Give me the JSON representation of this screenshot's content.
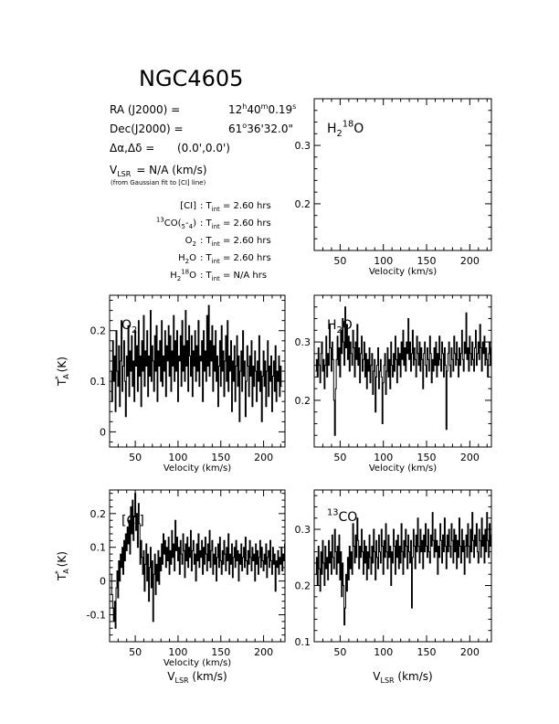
{
  "header": {
    "object": "NGC4605",
    "ra_label": "RA (J2000) =",
    "ra": {
      "h": "12",
      "m": "40",
      "s": "0.19"
    },
    "dec_label": "Dec(J2000) =",
    "dec": {
      "d": "61",
      "m": "36",
      "s": "32.0"
    },
    "offset_label": "Δα,Δδ =",
    "offset_value": "(0.0',0.0')",
    "vlsr_value": "= N/A  (km/s)",
    "fit_note": "(from Gaussian fit to [CI] line)",
    "tint_lines": [
      {
        "label": "[CI]",
        "value": "2.60"
      },
      {
        "label": "13CO(5-4)",
        "value": "2.60"
      },
      {
        "label": "O2",
        "value": "2.60"
      },
      {
        "label": "H2O",
        "value": "2.60"
      },
      {
        "label": "H2 18O",
        "value": "N/A"
      }
    ],
    "tint_unit": "hrs"
  },
  "chart_data": [
    {
      "id": "h218o",
      "type": "line",
      "label": "H2 18O",
      "xlabel": "Velocity (km/s)",
      "ylabel": "",
      "xlim": [
        20,
        225
      ],
      "ylim": [
        0.12,
        0.38
      ],
      "xticks": [
        50,
        100,
        150,
        200
      ],
      "yticks": [
        0.2,
        0.3
      ],
      "x": [],
      "y": []
    },
    {
      "id": "o2",
      "type": "line",
      "label": "O2",
      "xlabel": "Velocity (km/s)",
      "ylabel": "T*A (K)",
      "xlim": [
        20,
        225
      ],
      "ylim": [
        -0.03,
        0.27
      ],
      "xticks": [
        50,
        100,
        150,
        200
      ],
      "yticks": [
        0,
        0.1,
        0.2
      ],
      "x_start": 22,
      "x_step": 1,
      "y": [
        0.12,
        0.06,
        0.18,
        0.1,
        0.15,
        0.04,
        0.2,
        0.12,
        0.09,
        0.17,
        0.05,
        0.14,
        0.22,
        0.08,
        0.13,
        0.18,
        0.1,
        0.03,
        0.15,
        0.11,
        0.21,
        0.07,
        0.16,
        0.12,
        0.19,
        0.09,
        0.14,
        0.06,
        0.2,
        0.13,
        0.17,
        0.08,
        0.22,
        0.11,
        0.15,
        0.05,
        0.18,
        0.12,
        0.23,
        0.09,
        0.16,
        0.13,
        0.2,
        0.07,
        0.15,
        0.11,
        0.24,
        0.1,
        0.17,
        0.14,
        0.08,
        0.19,
        0.12,
        0.21,
        0.06,
        0.16,
        0.13,
        0.18,
        0.1,
        0.22,
        0.09,
        0.15,
        0.12,
        0.2,
        0.07,
        0.17,
        0.14,
        0.21,
        0.11,
        0.19,
        0.08,
        0.16,
        0.13,
        0.23,
        0.1,
        0.18,
        0.12,
        0.2,
        0.06,
        0.15,
        0.14,
        0.19,
        0.09,
        0.22,
        0.12,
        0.17,
        0.1,
        0.24,
        0.13,
        0.18,
        0.08,
        0.21,
        0.15,
        0.11,
        0.19,
        0.07,
        0.16,
        0.13,
        0.2,
        0.1,
        0.17,
        0.12,
        0.22,
        0.09,
        0.15,
        0.14,
        0.18,
        0.06,
        0.2,
        0.12,
        0.16,
        0.1,
        0.23,
        0.13,
        0.25,
        0.11,
        0.18,
        0.14,
        0.21,
        0.08,
        0.17,
        0.12,
        0.2,
        0.1,
        0.15,
        0.05,
        0.13,
        0.18,
        0.09,
        0.21,
        0.12,
        0.16,
        0.07,
        0.14,
        0.19,
        0.1,
        0.22,
        0.08,
        0.15,
        0.12,
        0.18,
        0.04,
        0.14,
        0.1,
        0.17,
        0.06,
        0.13,
        0.19,
        0.09,
        0.15,
        0.02,
        0.12,
        0.16,
        0.08,
        0.2,
        0.11,
        0.14,
        0.03,
        0.1,
        0.17,
        0.13,
        0.07,
        0.15,
        0.11,
        0.18,
        0.05,
        0.13,
        0.09,
        0.16,
        0.12,
        0.06,
        0.14,
        0.1,
        0.19,
        0.08,
        0.12,
        0.02,
        0.11,
        0.16,
        0.09,
        0.14,
        0.05,
        0.12,
        0.18,
        0.07,
        0.13,
        0.1,
        0.15,
        0.04,
        0.11,
        0.14,
        0.08,
        0.17,
        0.06,
        0.12,
        0.1,
        0.15,
        0.07,
        0.13,
        0.09
      ]
    },
    {
      "id": "h2o",
      "type": "line",
      "label": "H2O",
      "xlabel": "Velocity (km/s)",
      "ylabel": "",
      "xlim": [
        20,
        225
      ],
      "ylim": [
        0.12,
        0.38
      ],
      "xticks": [
        50,
        100,
        150,
        200
      ],
      "yticks": [
        0.2,
        0.3
      ],
      "x_start": 22,
      "x_step": 1,
      "y": [
        0.25,
        0.27,
        0.24,
        0.29,
        0.26,
        0.23,
        0.28,
        0.3,
        0.25,
        0.27,
        0.22,
        0.26,
        0.31,
        0.24,
        0.28,
        0.26,
        0.33,
        0.29,
        0.25,
        0.3,
        0.27,
        0.2,
        0.14,
        0.22,
        0.27,
        0.31,
        0.26,
        0.29,
        0.24,
        0.32,
        0.28,
        0.34,
        0.3,
        0.26,
        0.36,
        0.29,
        0.33,
        0.27,
        0.31,
        0.25,
        0.3,
        0.28,
        0.26,
        0.32,
        0.29,
        0.24,
        0.3,
        0.27,
        0.33,
        0.26,
        0.29,
        0.23,
        0.28,
        0.31,
        0.25,
        0.27,
        0.3,
        0.24,
        0.28,
        0.22,
        0.27,
        0.25,
        0.29,
        0.23,
        0.26,
        0.28,
        0.21,
        0.25,
        0.27,
        0.18,
        0.24,
        0.26,
        0.29,
        0.22,
        0.25,
        0.27,
        0.24,
        0.16,
        0.23,
        0.26,
        0.28,
        0.21,
        0.25,
        0.29,
        0.24,
        0.27,
        0.22,
        0.3,
        0.26,
        0.24,
        0.28,
        0.25,
        0.31,
        0.27,
        0.23,
        0.29,
        0.26,
        0.28,
        0.24,
        0.3,
        0.27,
        0.32,
        0.26,
        0.29,
        0.25,
        0.3,
        0.28,
        0.34,
        0.27,
        0.3,
        0.25,
        0.28,
        0.32,
        0.26,
        0.29,
        0.27,
        0.24,
        0.31,
        0.28,
        0.26,
        0.3,
        0.25,
        0.29,
        0.27,
        0.22,
        0.28,
        0.3,
        0.26,
        0.24,
        0.29,
        0.27,
        0.25,
        0.31,
        0.28,
        0.23,
        0.27,
        0.25,
        0.29,
        0.26,
        0.3,
        0.24,
        0.28,
        0.26,
        0.31,
        0.27,
        0.25,
        0.3,
        0.28,
        0.24,
        0.29,
        0.26,
        0.15,
        0.25,
        0.28,
        0.3,
        0.26,
        0.24,
        0.29,
        0.27,
        0.25,
        0.31,
        0.28,
        0.26,
        0.3,
        0.27,
        0.24,
        0.29,
        0.26,
        0.28,
        0.32,
        0.27,
        0.25,
        0.3,
        0.28,
        0.35,
        0.27,
        0.29,
        0.25,
        0.31,
        0.28,
        0.26,
        0.3,
        0.27,
        0.25,
        0.29,
        0.32,
        0.26,
        0.28,
        0.3,
        0.27,
        0.33,
        0.29,
        0.25,
        0.3,
        0.28,
        0.31,
        0.26,
        0.29,
        0.27,
        0.24,
        0.28,
        0.3,
        0.26,
        0.29,
        0.27,
        0.25
      ]
    },
    {
      "id": "ci",
      "type": "line",
      "label": "[CI]",
      "xlabel": "Velocity (km/s)",
      "ylabel": "T*A (K)",
      "xlim": [
        20,
        225
      ],
      "ylim": [
        -0.18,
        0.27
      ],
      "xticks": [
        50,
        100,
        150,
        200
      ],
      "yticks": [
        -0.1,
        0,
        0.1,
        0.2
      ],
      "bottom_xlabel": "VLSR (km/s)",
      "x_start": 22,
      "x_step": 1,
      "y": [
        0.02,
        -0.04,
        -0.08,
        -0.12,
        -0.06,
        -0.14,
        -0.02,
        0.03,
        -0.05,
        0.06,
        0.0,
        0.08,
        0.04,
        0.1,
        0.02,
        0.12,
        0.06,
        0.14,
        0.09,
        0.16,
        0.11,
        0.18,
        0.08,
        0.22,
        0.14,
        0.24,
        0.12,
        0.19,
        0.26,
        0.15,
        0.2,
        0.1,
        0.23,
        0.17,
        0.05,
        0.12,
        0.07,
        0.02,
        0.09,
        -0.03,
        0.05,
        0.11,
        0.0,
        0.08,
        -0.06,
        0.04,
        0.1,
        -0.02,
        0.06,
        -0.12,
        0.02,
        0.08,
        -0.04,
        0.05,
        0.0,
        0.09,
        -0.01,
        0.07,
        0.03,
        0.11,
        0.05,
        0.14,
        0.08,
        0.12,
        0.04,
        0.1,
        0.06,
        0.13,
        0.02,
        0.09,
        0.05,
        0.15,
        0.07,
        0.11,
        0.03,
        0.18,
        0.09,
        0.13,
        0.06,
        0.1,
        0.02,
        0.12,
        0.08,
        0.05,
        0.14,
        0.09,
        0.01,
        0.11,
        0.06,
        0.13,
        0.04,
        0.1,
        0.07,
        0.15,
        0.03,
        0.09,
        0.12,
        0.05,
        0.08,
        0.0,
        0.11,
        0.06,
        0.14,
        0.04,
        0.09,
        0.07,
        0.12,
        0.02,
        0.1,
        0.05,
        0.13,
        0.08,
        0.03,
        0.11,
        0.06,
        0.15,
        0.04,
        0.09,
        0.12,
        0.02,
        0.08,
        0.05,
        0.1,
        0.0,
        0.07,
        0.11,
        0.04,
        0.13,
        0.06,
        0.02,
        0.09,
        0.05,
        0.12,
        0.08,
        0.03,
        0.1,
        0.06,
        0.14,
        0.02,
        0.08,
        0.05,
        0.11,
        0.01,
        0.07,
        0.1,
        0.04,
        0.12,
        0.06,
        0.09,
        0.0,
        0.08,
        0.05,
        0.11,
        0.03,
        0.07,
        0.1,
        0.04,
        0.13,
        0.06,
        0.02,
        0.09,
        0.05,
        0.12,
        0.07,
        0.03,
        0.1,
        0.06,
        0.08,
        0.0,
        0.11,
        0.05,
        0.09,
        0.02,
        0.07,
        0.12,
        0.04,
        0.1,
        0.06,
        0.03,
        0.08,
        0.05,
        0.11,
        0.01,
        0.07,
        0.09,
        0.04,
        0.12,
        0.06,
        0.02,
        0.1,
        0.05,
        0.08,
        -0.03,
        0.06,
        0.04,
        0.09,
        0.02,
        0.07,
        0.05,
        0.1,
        0.03,
        0.08,
        0.06,
        0.11
      ]
    },
    {
      "id": "co13",
      "type": "line",
      "label": "13CO",
      "xlabel": "",
      "ylabel": "",
      "xlim": [
        20,
        225
      ],
      "ylim": [
        0.1,
        0.37
      ],
      "xticks": [
        50,
        100,
        150,
        200
      ],
      "yticks": [
        0.1,
        0.2,
        0.3
      ],
      "bottom_xlabel": "VLSR (km/s)",
      "x_start": 22,
      "x_step": 1,
      "y": [
        0.22,
        0.25,
        0.2,
        0.27,
        0.23,
        0.19,
        0.26,
        0.22,
        0.28,
        0.24,
        0.2,
        0.27,
        0.23,
        0.25,
        0.21,
        0.28,
        0.24,
        0.26,
        0.22,
        0.29,
        0.25,
        0.23,
        0.3,
        0.26,
        0.22,
        0.27,
        0.24,
        0.29,
        0.21,
        0.26,
        0.18,
        0.24,
        0.2,
        0.13,
        0.16,
        0.22,
        0.19,
        0.25,
        0.21,
        0.27,
        0.23,
        0.26,
        0.22,
        0.31,
        0.27,
        0.24,
        0.29,
        0.25,
        0.32,
        0.28,
        0.23,
        0.27,
        0.25,
        0.3,
        0.26,
        0.22,
        0.28,
        0.24,
        0.27,
        0.21,
        0.26,
        0.23,
        0.29,
        0.25,
        0.22,
        0.27,
        0.24,
        0.3,
        0.26,
        0.21,
        0.28,
        0.25,
        0.23,
        0.29,
        0.26,
        0.24,
        0.3,
        0.27,
        0.22,
        0.28,
        0.25,
        0.31,
        0.26,
        0.23,
        0.29,
        0.25,
        0.27,
        0.2,
        0.26,
        0.24,
        0.3,
        0.27,
        0.22,
        0.28,
        0.25,
        0.29,
        0.23,
        0.27,
        0.24,
        0.31,
        0.26,
        0.22,
        0.28,
        0.25,
        0.3,
        0.27,
        0.23,
        0.29,
        0.26,
        0.24,
        0.28,
        0.16,
        0.25,
        0.3,
        0.27,
        0.23,
        0.29,
        0.26,
        0.32,
        0.27,
        0.24,
        0.3,
        0.26,
        0.28,
        0.23,
        0.29,
        0.26,
        0.31,
        0.27,
        0.25,
        0.3,
        0.26,
        0.24,
        0.29,
        0.27,
        0.33,
        0.28,
        0.25,
        0.3,
        0.26,
        0.28,
        0.22,
        0.27,
        0.25,
        0.31,
        0.28,
        0.24,
        0.29,
        0.26,
        0.32,
        0.27,
        0.23,
        0.29,
        0.26,
        0.3,
        0.27,
        0.25,
        0.31,
        0.28,
        0.24,
        0.3,
        0.26,
        0.29,
        0.23,
        0.28,
        0.25,
        0.32,
        0.27,
        0.24,
        0.3,
        0.26,
        0.28,
        0.22,
        0.27,
        0.29,
        0.25,
        0.31,
        0.27,
        0.24,
        0.3,
        0.26,
        0.33,
        0.28,
        0.25,
        0.29,
        0.27,
        0.31,
        0.26,
        0.24,
        0.3,
        0.28,
        0.25,
        0.32,
        0.27,
        0.29,
        0.24,
        0.3,
        0.26,
        0.33,
        0.28,
        0.25,
        0.31,
        0.27,
        0.29
      ]
    }
  ]
}
